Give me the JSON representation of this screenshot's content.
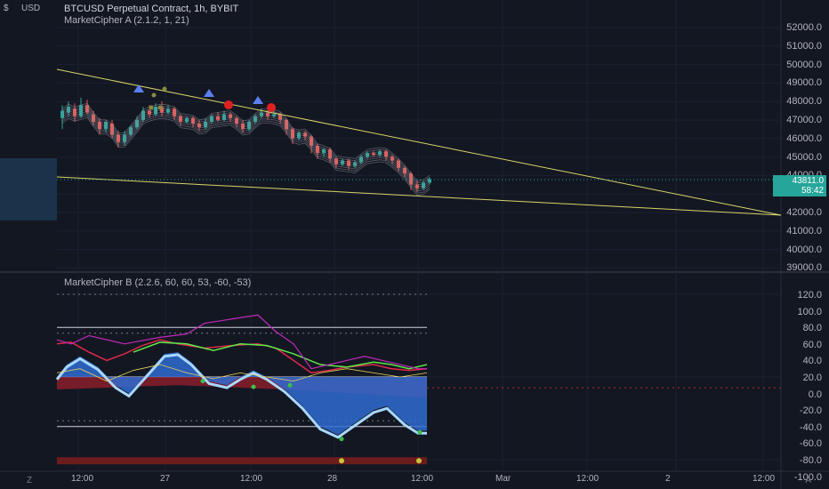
{
  "header": {
    "currency": "USD",
    "currency_prefix": "$",
    "title": "BTCUSD Perpetual Contract, 1h, BYBIT",
    "indicator_a": "MarketCipher A (2.1.2, 1, 21)",
    "indicator_b": "MarketCipher B (2.2.6, 60, 60, 53, -60, -53)"
  },
  "price_axis": [
    "52000.0",
    "51000.0",
    "50000.0",
    "49000.0",
    "48000.0",
    "47000.0",
    "46000.0",
    "45000.0",
    "44000.0",
    "43000.0",
    "42000.0",
    "41000.0",
    "40000.0",
    "39000.0"
  ],
  "price_tag": {
    "price": "43811.0",
    "countdown": "58:42"
  },
  "osc_axis": [
    "120.0",
    "100.0",
    "80.0",
    "60.0",
    "40.0",
    "20.0",
    "0.0",
    "-20.0",
    "-40.0",
    "-60.0",
    "-80.0",
    "-100.0"
  ],
  "time_axis": [
    "12:00",
    "27",
    "12:00",
    "28",
    "12:00",
    "Mar",
    "12:00",
    "2",
    "12:00"
  ],
  "corners": {
    "left": "Z",
    "right": "A"
  },
  "colors": {
    "background": "#131722",
    "up": "#26a69a",
    "down": "#ef5350",
    "trendline": "#d8d56a",
    "wave": "#2f6bd1"
  }
}
